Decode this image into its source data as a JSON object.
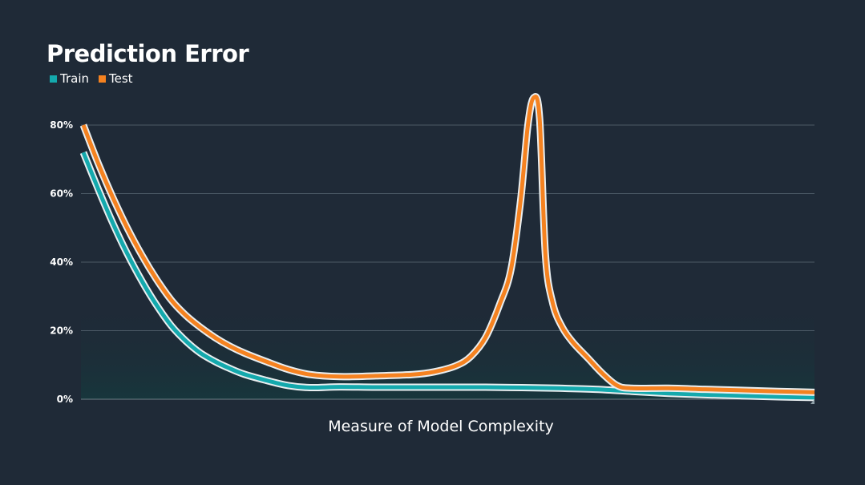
{
  "chart_data": {
    "type": "line",
    "title": "Prediction Error",
    "xlabel": "Measure of Model Complexity",
    "ylabel": "",
    "xlim": [
      0,
      100
    ],
    "ylim": [
      0,
      80
    ],
    "yticks": [
      0,
      20,
      40,
      60,
      80
    ],
    "ytick_labels": [
      "0%",
      "20%",
      "40%",
      "60%",
      "80%"
    ],
    "grid": true,
    "legend_position": "top-left",
    "series": [
      {
        "name": "Train",
        "color": "#14a9ad",
        "x": [
          0,
          2,
          4,
          6,
          8,
          10,
          12,
          14,
          16,
          18,
          20,
          22,
          25,
          28,
          31,
          35,
          40,
          45,
          50,
          55,
          60,
          65,
          70,
          75,
          80,
          85,
          90,
          95,
          100
        ],
        "y": [
          72,
          61.5,
          51.5,
          42.5,
          34.5,
          27.5,
          21.5,
          17,
          13.5,
          11,
          9,
          7.3,
          5.5,
          4,
          3.4,
          3.6,
          3.5,
          3.5,
          3.5,
          3.5,
          3.4,
          3.2,
          2.9,
          2.3,
          1.7,
          1.3,
          1,
          0.7,
          0.5
        ]
      },
      {
        "name": "Test",
        "color": "#f58220",
        "x": [
          0,
          2,
          4,
          6,
          8,
          10,
          12,
          14,
          16,
          18,
          20,
          22,
          25,
          28,
          31,
          35,
          40,
          45,
          48,
          51,
          53,
          55,
          57,
          58.5,
          59.8,
          60.8,
          61.6,
          62.4,
          63.2,
          64.2,
          65.5,
          67,
          69,
          71,
          73,
          75,
          80,
          85,
          90,
          95,
          100
        ],
        "y": [
          80,
          69,
          59,
          50,
          42,
          35,
          29,
          24.5,
          21,
          18,
          15.5,
          13.5,
          11,
          8.7,
          7.2,
          6.6,
          6.8,
          7.2,
          8,
          9.8,
          12.5,
          18,
          28,
          38,
          58,
          80,
          88,
          82,
          42,
          28,
          21,
          16.5,
          12,
          7.5,
          4,
          3.2,
          3.2,
          2.9,
          2.6,
          2.3,
          2
        ]
      }
    ]
  }
}
